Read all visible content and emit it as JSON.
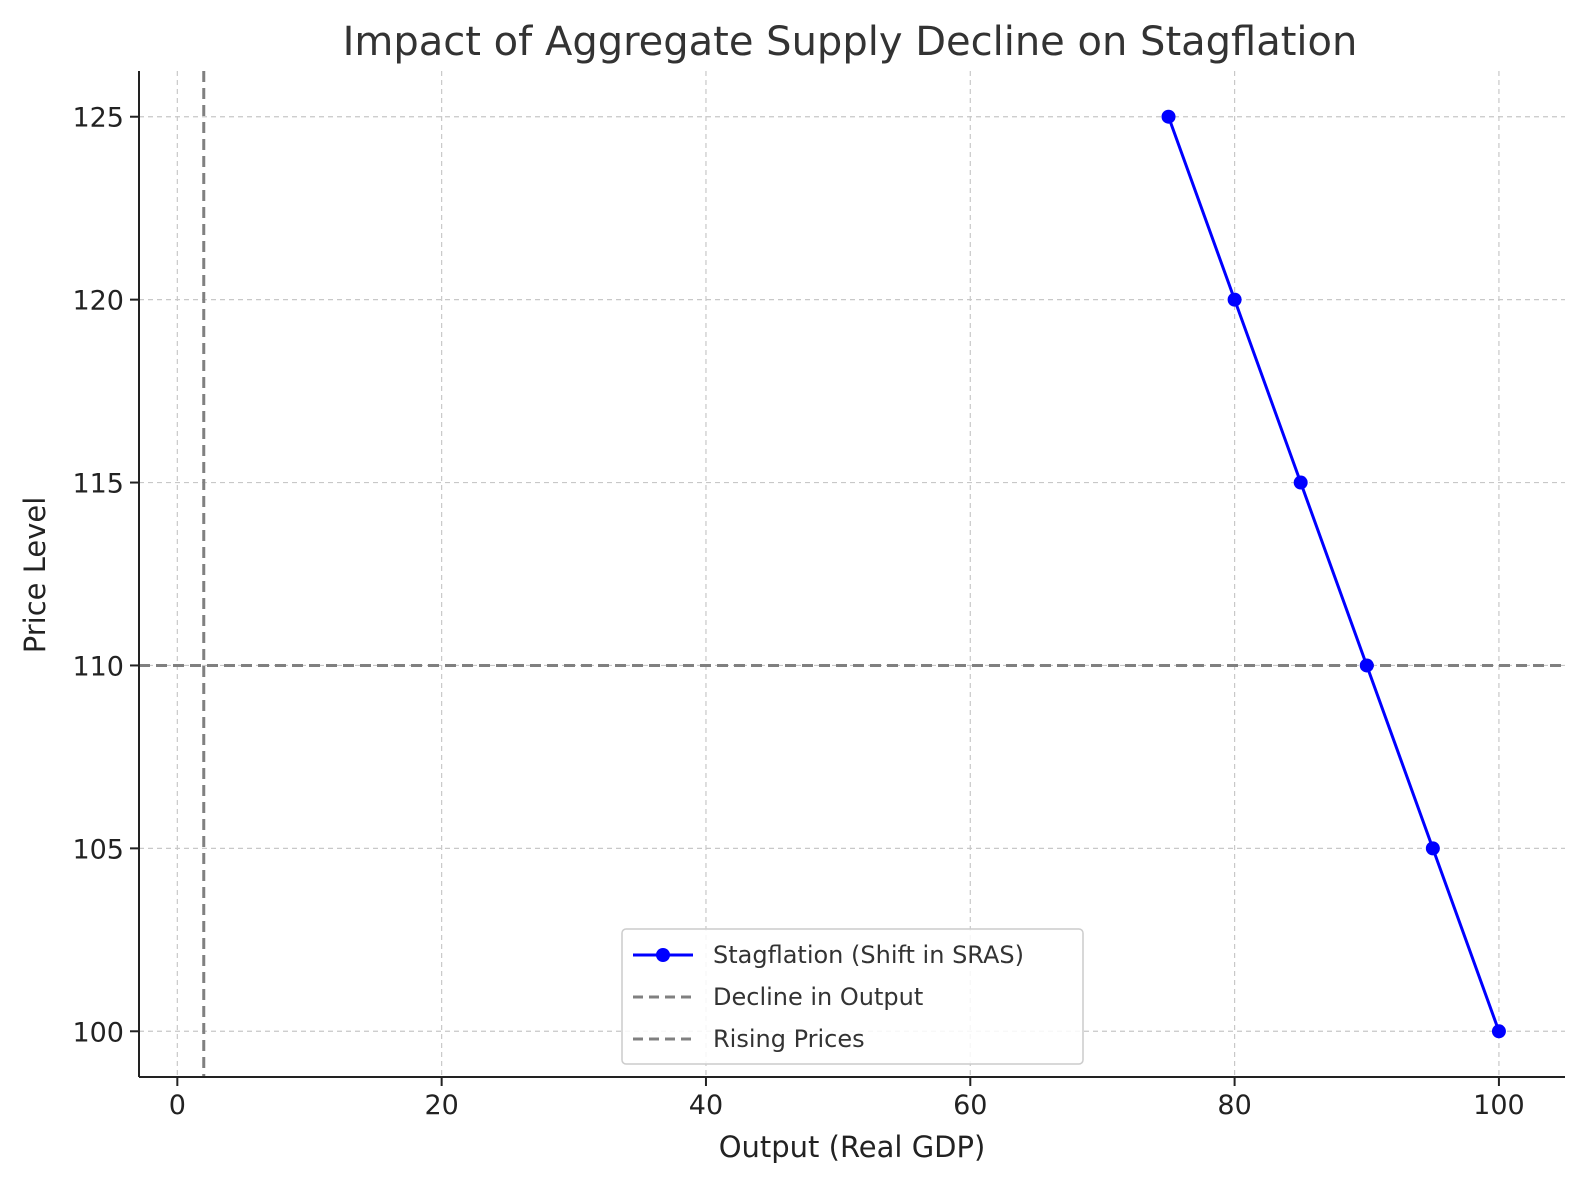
{
  "chart_data": {
    "type": "line",
    "title": "Impact of Aggregate Supply Decline on Stagflation",
    "xlabel": "Output (Real GDP)",
    "ylabel": "Price Level",
    "xlim": [
      -2.9,
      105.0
    ],
    "ylim": [
      98.75,
      126.25
    ],
    "xticks": [
      0,
      20,
      40,
      60,
      80,
      100
    ],
    "yticks": [
      100,
      105,
      110,
      115,
      120,
      125
    ],
    "xtick_labels": [
      "0",
      "20",
      "40",
      "60",
      "80",
      "100"
    ],
    "ytick_labels": [
      "100",
      "105",
      "110",
      "115",
      "120",
      "125"
    ],
    "grid": true,
    "legend_position": "lower center",
    "series": [
      {
        "name": "Stagflation (Shift in SRAS)",
        "x": [
          75,
          80,
          85,
          90,
          95,
          100
        ],
        "y": [
          125,
          120,
          115,
          110,
          105,
          100
        ],
        "color": "#0000ff",
        "style": "solid",
        "marker": "circle"
      }
    ],
    "reference_lines": [
      {
        "name": "Decline in Output",
        "orientation": "vertical",
        "value": 2,
        "color": "#808080",
        "style": "dashed"
      },
      {
        "name": "Rising Prices",
        "orientation": "horizontal",
        "value": 110,
        "color": "#808080",
        "style": "dashed"
      }
    ]
  }
}
